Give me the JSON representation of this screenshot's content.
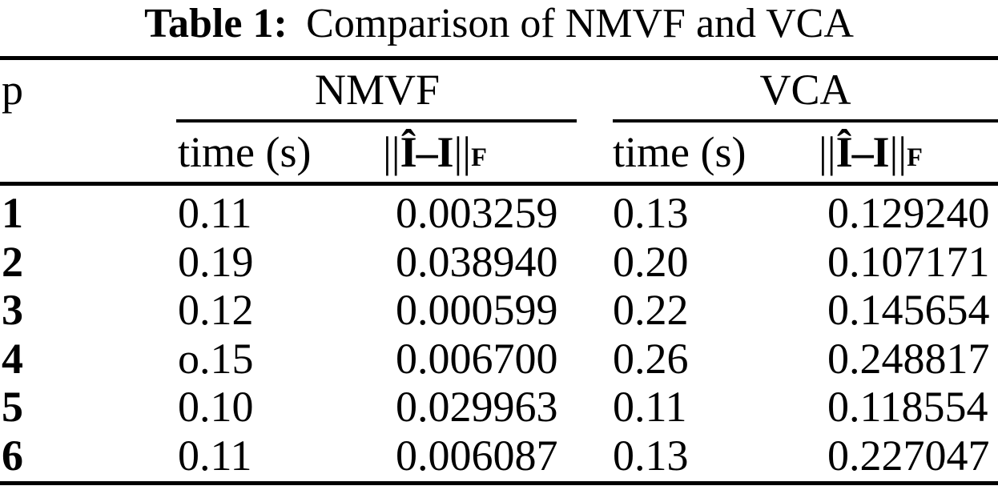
{
  "caption": {
    "label": "Table 1:",
    "text": "Comparison of NMVF and VCA"
  },
  "table": {
    "p_header": "p",
    "groups": {
      "nmvf": "NMVF",
      "vca": "VCA"
    },
    "subheaders": {
      "time": "time (s)",
      "norm": {
        "open": "||",
        "ihat": "Î",
        "dash": "–",
        "i": "I",
        "close": "||",
        "sub": "F"
      }
    },
    "rows": [
      {
        "p": "1",
        "nmvf_time": "0.11",
        "nmvf_err": "0.003259",
        "vca_time": "0.13",
        "vca_err": "0.129240"
      },
      {
        "p": "2",
        "nmvf_time": "0.19",
        "nmvf_err": "0.038940",
        "vca_time": "0.20",
        "vca_err": "0.107171"
      },
      {
        "p": "3",
        "nmvf_time": "0.12",
        "nmvf_err": "0.000599",
        "vca_time": "0.22",
        "vca_err": "0.145654"
      },
      {
        "p": "4",
        "nmvf_time": "o.15",
        "nmvf_err": "0.006700",
        "vca_time": "0.26",
        "vca_err": "0.248817"
      },
      {
        "p": "5",
        "nmvf_time": "0.10",
        "nmvf_err": "0.029963",
        "vca_time": "0.11",
        "vca_err": "0.118554"
      },
      {
        "p": "6",
        "nmvf_time": "0.11",
        "nmvf_err": "0.006087",
        "vca_time": "0.13",
        "vca_err": "0.227047"
      }
    ]
  },
  "colors": {
    "text": "#000000",
    "background": "#ffffff",
    "rule": "#000000"
  }
}
